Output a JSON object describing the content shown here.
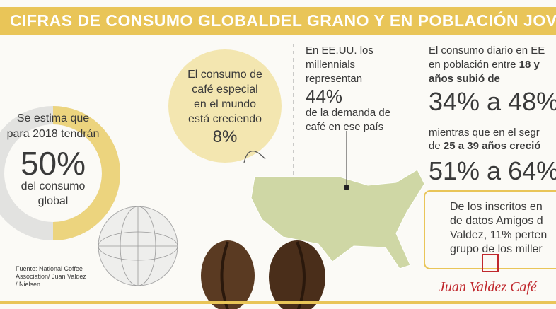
{
  "title": "CIFRAS DE CONSUMO GLOBALDEL GRANO Y EN POBLACIÓN JOVEN",
  "donut": {
    "lines": [
      "Se estima que",
      "para 2018 tendrán"
    ],
    "value": "50%",
    "caption": [
      "del consumo",
      "global"
    ]
  },
  "bubble": {
    "lines": [
      "El consumo de",
      "café especial",
      "en el mundo",
      "está creciendo"
    ],
    "value": "8%"
  },
  "usa": {
    "lines": [
      "En EE.UU. los",
      "millennials",
      "representan"
    ],
    "value": "44%",
    "caption": [
      "de la demanda de",
      "café en ese país"
    ]
  },
  "daily": {
    "line1": "El consumo diario en EE",
    "line2": "en población entre ",
    "line2_bold": "18 y",
    "line3_bold": "años subió de",
    "range": "34% a 48%"
  },
  "segment": {
    "line1": "mientras que en el segr",
    "line2": "de ",
    "line2_bold": "25 a 39 años creció",
    "range": "51% a 64%"
  },
  "box": {
    "lines": [
      "De los inscritos en",
      "de datos Amigos d",
      "Valdez, 11% perten",
      "grupo de los miller"
    ]
  },
  "logo": "Juan Valdez Café",
  "source": [
    "Fuente: National Coffee",
    "Association/ Juan Valdez",
    "/ Nielsen"
  ]
}
